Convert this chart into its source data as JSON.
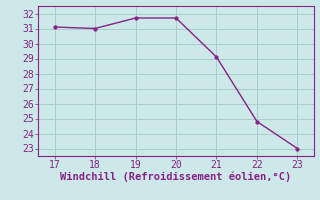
{
  "x": [
    17,
    18,
    19,
    20,
    21,
    22,
    23
  ],
  "y": [
    31.1,
    31.0,
    31.7,
    31.7,
    29.1,
    24.8,
    23.0
  ],
  "line_color": "#882288",
  "marker_color": "#882288",
  "bg_color": "#cce8e8",
  "grid_color": "#aacccc",
  "xlabel": "Windchill (Refroidissement éolien,°C)",
  "xlabel_color": "#882288",
  "tick_color": "#882288",
  "xlim": [
    16.6,
    23.4
  ],
  "ylim": [
    22.5,
    32.5
  ],
  "xticks": [
    17,
    18,
    19,
    20,
    21,
    22,
    23
  ],
  "yticks": [
    23,
    24,
    25,
    26,
    27,
    28,
    29,
    30,
    31,
    32
  ],
  "font_size": 7.0,
  "xlabel_font_size": 7.5
}
